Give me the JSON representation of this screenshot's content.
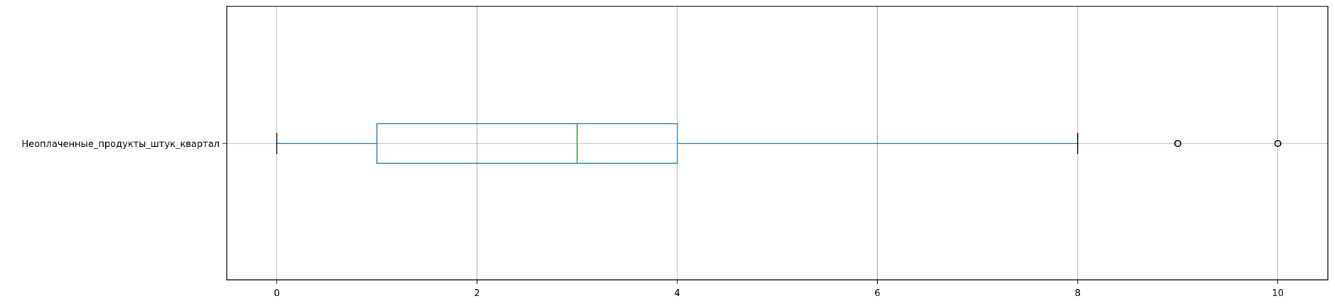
{
  "chart_data": {
    "type": "boxplot",
    "orientation": "horizontal",
    "title": "",
    "xlabel": "",
    "ylabel": "",
    "grid": true,
    "xlim": [
      -0.5,
      10.5
    ],
    "x_ticks": [
      0,
      2,
      4,
      6,
      8,
      10
    ],
    "series": [
      {
        "name": "Неоплаченные_продукты_штук_квартал",
        "whisker_low": 0,
        "q1": 1,
        "median": 3,
        "q3": 4,
        "whisker_high": 8,
        "outliers": [
          9,
          10
        ]
      }
    ],
    "colors": {
      "box": "#1f77b4",
      "median": "#2ca02c",
      "whisker_cap": "#000000",
      "grid": "#b0b0b0",
      "frame": "#000000"
    }
  }
}
